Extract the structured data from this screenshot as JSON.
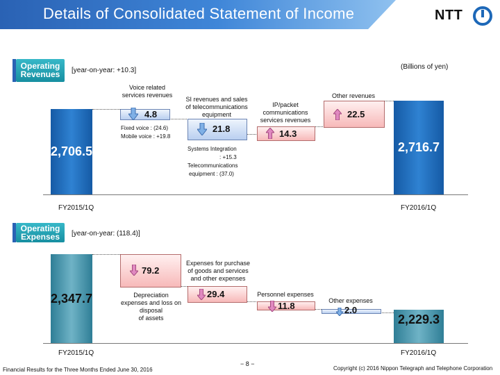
{
  "header": {
    "title": "Details of Consolidated Statement of Income",
    "logo_text": "NTT"
  },
  "revenues": {
    "tag_line1": "Operating",
    "tag_line2": "Revenues",
    "yoy": "[year-on-year: +10.3]",
    "unit": "(Billions of yen)",
    "start_value": "2,706.5",
    "end_value": "2,716.7",
    "start_label": "FY2015/1Q",
    "end_label": "FY2016/1Q",
    "voice_caption_1": "Voice related",
    "voice_caption_2": "services revenues",
    "voice_value": "4.8",
    "voice_detail_1": "Fixed voice :  (24.6)",
    "voice_detail_2": "Mobile voice :  +19.8",
    "si_caption_1": "SI revenues and sales",
    "si_caption_2": "of telecommunications",
    "si_caption_3": "equipment",
    "si_value": "21.8",
    "si_detail_1": "Systems Integration",
    "si_detail_2": ":  +15.3",
    "si_detail_3": "Telecommunications",
    "si_detail_4": "equipment  :  (37.0)",
    "ip_caption_1": "IP/packet",
    "ip_caption_2": "communications",
    "ip_caption_3": "services revenues",
    "ip_value": "14.3",
    "other_caption": "Other revenues",
    "other_value": "22.5"
  },
  "expenses": {
    "tag_line1": "Operating",
    "tag_line2": "Expenses",
    "yoy": "[year-on-year: (118.4)]",
    "start_value": "2,347.7",
    "end_value": "2,229.3",
    "start_label": "FY2015/1Q",
    "end_label": "FY2016/1Q",
    "dep_value": "79.2",
    "dep_caption_1": "Depreciation",
    "dep_caption_2": "expenses and loss on",
    "dep_caption_3": "disposal",
    "dep_caption_4": "of assets",
    "purchase_caption_1": "Expenses for purchase",
    "purchase_caption_2": "of goods and services",
    "purchase_caption_3": "and other expenses",
    "purchase_value": "29.4",
    "personnel_caption": "Personnel expenses",
    "personnel_value": "11.8",
    "other_caption": "Other expenses",
    "other_value": "2.0"
  },
  "footer": {
    "left": "Financial Results for the Three Months Ended June 30, 2016",
    "page": "− 8 −",
    "right": "Copyright (c) 2016  Nippon Telegraph and Telephone Corporation"
  },
  "colors": {
    "title_blue": "#2a62b4",
    "tag_teal": "#1e9fb1",
    "increase_pink": "#f7b9b9",
    "decrease_blue": "#b9cff0",
    "bar_blue": "#1d68b8",
    "bar_teal": "#4a9ab0"
  }
}
